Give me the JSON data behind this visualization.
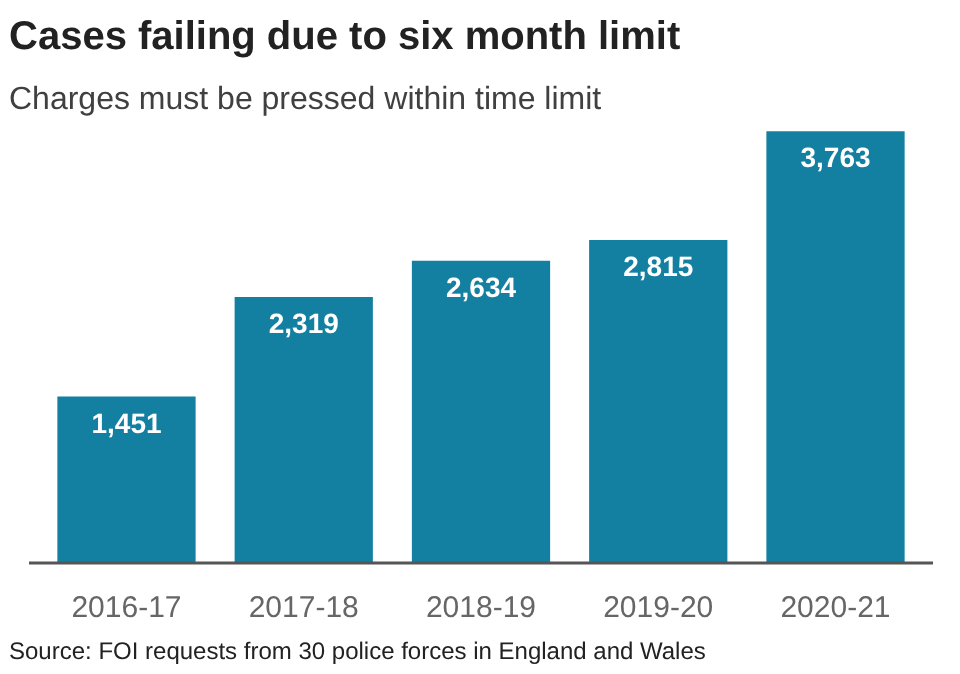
{
  "chart_data": {
    "type": "bar",
    "title": "Cases failing due to six month limit",
    "subtitle": "Charges must be pressed within time limit",
    "categories": [
      "2016-17",
      "2017-18",
      "2018-19",
      "2019-20",
      "2020-21"
    ],
    "values": [
      1451,
      2319,
      2634,
      2815,
      3763
    ],
    "color": "#1380a1",
    "value_labels": [
      "1,451",
      "2,319",
      "2,634",
      "2,815",
      "3,763"
    ],
    "annotations": [
      "Source: FOI requests from 30 police forces in England and Wales"
    ]
  }
}
